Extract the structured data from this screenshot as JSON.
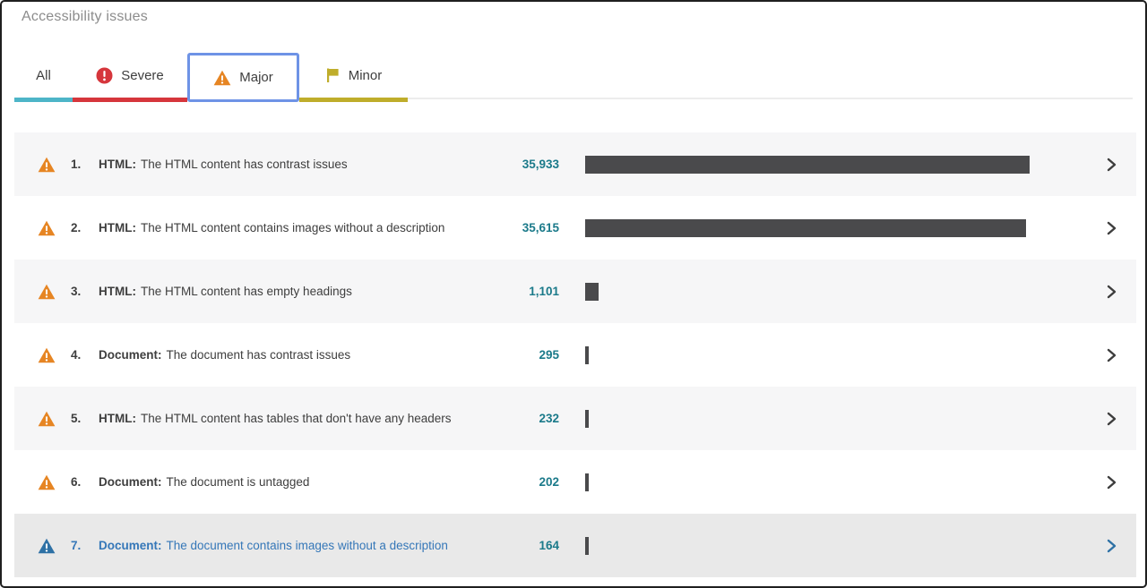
{
  "window": {
    "title": "Accessibility issues"
  },
  "tabs": [
    {
      "label": "All",
      "color": "#4db5c8",
      "selected": false
    },
    {
      "label": "Severe",
      "color": "#d6363c",
      "icon": "severe-exclamation-circle",
      "selected": false
    },
    {
      "label": "Major",
      "color": "#e68523",
      "icon": "major-warning-triangle",
      "selected": true
    },
    {
      "label": "Minor",
      "color": "#bfad2b",
      "icon": "minor-flag",
      "selected": false
    }
  ],
  "issues": [
    {
      "rank": "1.",
      "category": "HTML:",
      "description": "The HTML content has contrast issues",
      "count": "35,933",
      "value": 35933
    },
    {
      "rank": "2.",
      "category": "HTML:",
      "description": "The HTML content contains images without a description",
      "count": "35,615",
      "value": 35615
    },
    {
      "rank": "3.",
      "category": "HTML:",
      "description": "The HTML content has empty headings",
      "count": "1,101",
      "value": 1101
    },
    {
      "rank": "4.",
      "category": "Document:",
      "description": "The document has contrast issues",
      "count": "295",
      "value": 295
    },
    {
      "rank": "5.",
      "category": "HTML:",
      "description": "The HTML content has tables that don't have any headers",
      "count": "232",
      "value": 232
    },
    {
      "rank": "6.",
      "category": "Document:",
      "description": "The document is untagged",
      "count": "202",
      "value": 202
    },
    {
      "rank": "7.",
      "category": "Document:",
      "description": "The document contains images without a description",
      "count": "164",
      "value": 164,
      "highlighted": true
    }
  ],
  "chart_data": {
    "type": "bar",
    "orientation": "horizontal",
    "title": "Accessibility issues",
    "subtitle": "Major tab selected",
    "categories": [
      "HTML: The HTML content has contrast issues",
      "HTML: The HTML content contains images without a description",
      "HTML: The HTML content has empty headings",
      "Document: The document has contrast issues",
      "HTML: The HTML content has tables that don't have any headers",
      "Document: The document is untagged",
      "Document: The document contains images without a description"
    ],
    "values": [
      35933,
      35615,
      1101,
      295,
      232,
      202,
      164
    ],
    "value_labels": [
      "35,933",
      "35,615",
      "1,101",
      "295",
      "232",
      "202",
      "164"
    ],
    "xlim": [
      0,
      35933
    ],
    "grid": false,
    "legend": false,
    "bar_color": "#4a4a4c"
  },
  "colors": {
    "title-gray": "#8c8c8c",
    "text-dark": "#3e3e3e",
    "count-teal": "#1b7a8a",
    "bar-dark": "#4a4a4c",
    "warning-orange": "#e68523",
    "icon-blue": "#2e71a5",
    "highlight-blue": "#3577b8",
    "selected-border": "#6e93e6",
    "chevron-dark": "#3d3d3d",
    "row-alt": "#f6f6f7",
    "row-highlight": "#e9e9e9"
  }
}
